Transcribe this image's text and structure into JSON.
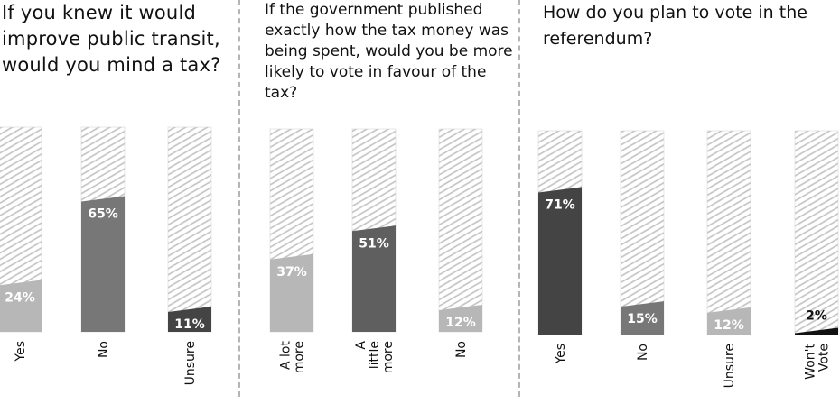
{
  "chart_data": [
    {
      "type": "bar",
      "title": "If you knew it would improve public transit, would you mind a tax?",
      "categories": [
        [
          "Yes"
        ],
        [
          "No"
        ],
        [
          "Unsure"
        ]
      ],
      "values": [
        24,
        65,
        11
      ],
      "value_labels": [
        "24%",
        "65%",
        "11%"
      ],
      "colors": [
        "#b7b7b7",
        "#777777",
        "#444444"
      ],
      "ylim": [
        0,
        100
      ]
    },
    {
      "type": "bar",
      "title": "If the government published exactly how the tax money was being spent, would you be more likely to vote in favour of the tax?",
      "categories": [
        [
          "A lot",
          "more"
        ],
        [
          "A",
          "little",
          "more"
        ],
        [
          "No"
        ]
      ],
      "values": [
        37,
        51,
        12
      ],
      "value_labels": [
        "37%",
        "51%",
        "12%"
      ],
      "colors": [
        "#b7b7b7",
        "#5f5f5f",
        "#b7b7b7"
      ],
      "ylim": [
        0,
        100
      ]
    },
    {
      "type": "bar",
      "title": "How do you plan to vote in the referendum?",
      "categories": [
        [
          "Yes"
        ],
        [
          "No"
        ],
        [
          "Unsure"
        ],
        [
          "Won't",
          "Vote"
        ]
      ],
      "values": [
        71,
        15,
        12,
        2
      ],
      "value_labels": [
        "71%",
        "15%",
        "12%",
        "2%"
      ],
      "colors": [
        "#444444",
        "#777777",
        "#b7b7b7",
        "#111111"
      ],
      "ylim": [
        0,
        100
      ]
    }
  ]
}
